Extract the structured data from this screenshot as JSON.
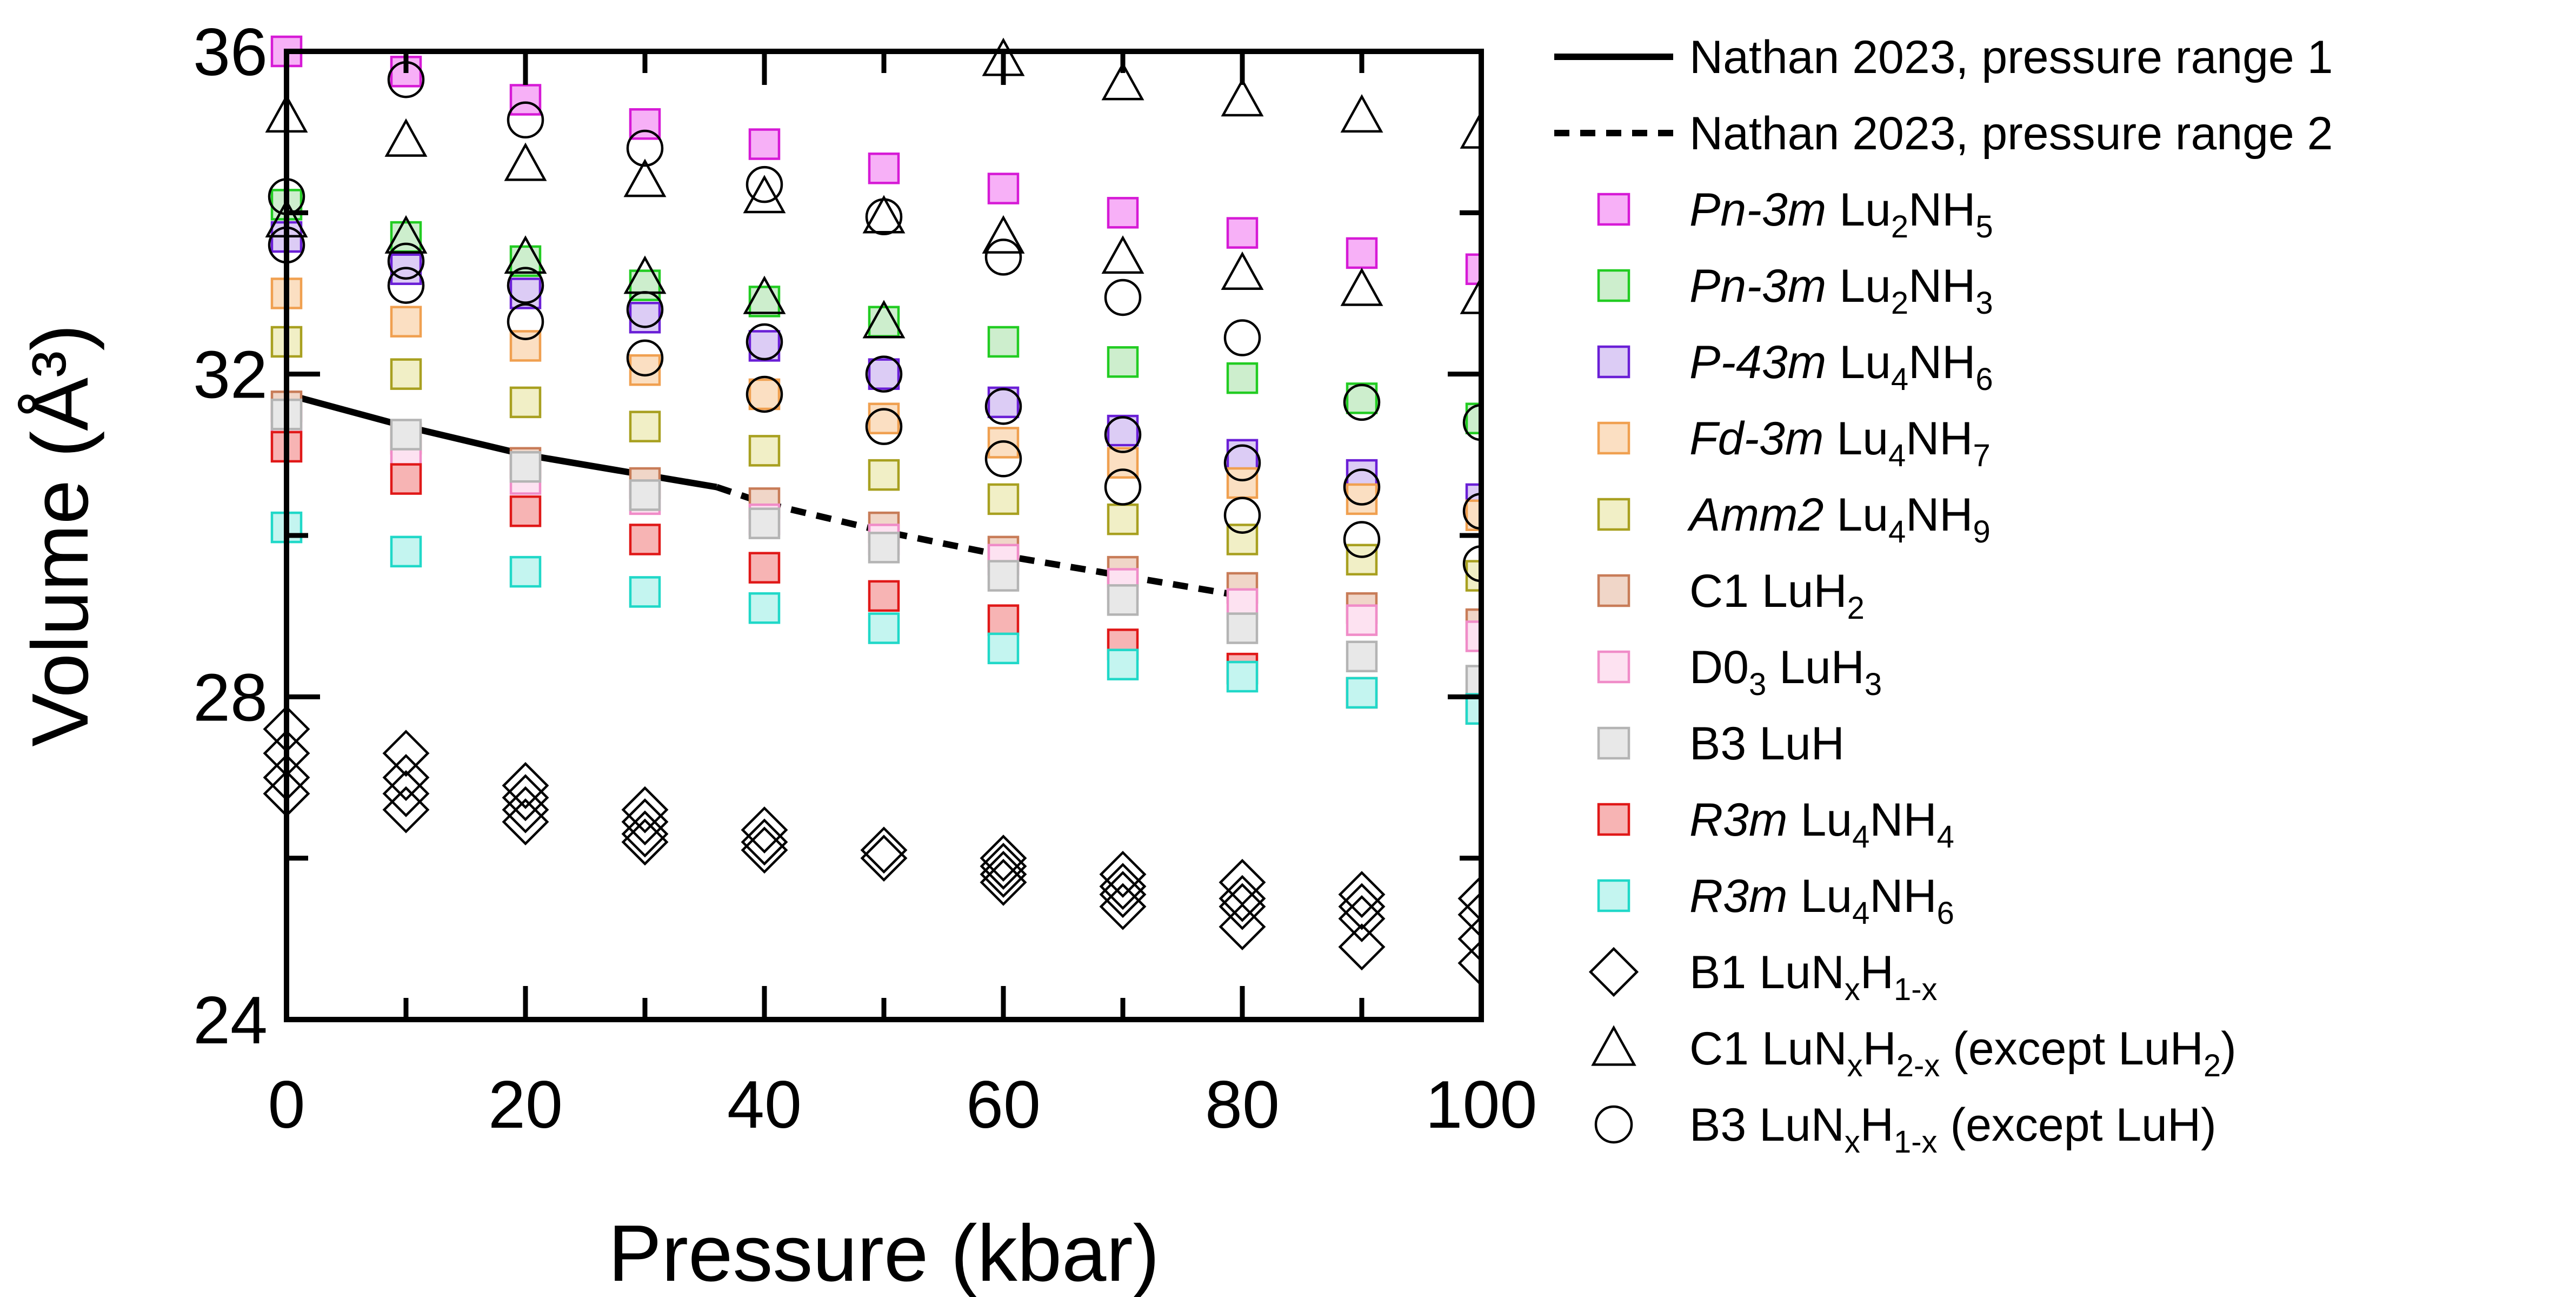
{
  "chart_data": {
    "type": "scatter",
    "title": "",
    "xlabel": "Pressure (kbar)",
    "ylabel": "Volume (Å³)",
    "xlim": [
      0,
      100
    ],
    "ylim": [
      24,
      36
    ],
    "xticks": [
      0,
      20,
      40,
      60,
      80,
      100
    ],
    "yticks": [
      24,
      28,
      32,
      36
    ],
    "grid": false,
    "legend_position": "right-outside",
    "lines": [
      {
        "name": "Nathan 2023, pressure range 1",
        "style": "solid",
        "x": [
          0,
          10,
          20,
          30,
          36
        ],
        "y": [
          31.75,
          31.35,
          31.0,
          30.75,
          30.6
        ]
      },
      {
        "name": "Nathan 2023, pressure range 2",
        "style": "dashed",
        "x": [
          36,
          40,
          50,
          60,
          70,
          80
        ],
        "y": [
          30.6,
          30.4,
          30.05,
          29.75,
          29.5,
          29.25
        ]
      }
    ],
    "series": [
      {
        "name": "Pn-3m Lu2NH5",
        "label_italic": "Pn-3m",
        "label_rest": " Lu",
        "formula": [
          [
            "2",
            "NH"
          ],
          [
            "5",
            ""
          ]
        ],
        "marker": "square",
        "stroke": "#d61ad6",
        "fill": "#f7b0f7",
        "x": [
          0,
          10,
          20,
          30,
          40,
          50,
          60,
          70,
          80,
          90,
          100
        ],
        "y": [
          36.0,
          35.75,
          35.4,
          35.1,
          34.85,
          34.55,
          34.3,
          34.0,
          33.75,
          33.5,
          33.3
        ]
      },
      {
        "name": "Pn-3m Lu2NH3",
        "label_italic": "Pn-3m",
        "label_rest": " Lu",
        "formula": [
          [
            "2",
            "NH"
          ],
          [
            "3",
            ""
          ]
        ],
        "marker": "square",
        "stroke": "#22cc22",
        "fill": "#cdeecd",
        "x": [
          0,
          10,
          20,
          30,
          40,
          50,
          60,
          70,
          80,
          90,
          100
        ],
        "y": [
          34.1,
          33.7,
          33.4,
          33.1,
          32.9,
          32.65,
          32.4,
          32.15,
          31.95,
          31.7,
          31.45
        ]
      },
      {
        "name": "P-43m Lu4NH6",
        "label_italic": "P-43m",
        "label_rest": " Lu",
        "formula": [
          [
            "4",
            "NH"
          ],
          [
            "6",
            ""
          ]
        ],
        "marker": "square",
        "stroke": "#6a1fd6",
        "fill": "#dcccf5",
        "x": [
          0,
          10,
          20,
          30,
          40,
          50,
          60,
          70,
          80,
          90,
          100
        ],
        "y": [
          33.7,
          33.3,
          33.0,
          32.7,
          32.35,
          32.0,
          31.65,
          31.3,
          31.0,
          30.75,
          30.45
        ]
      },
      {
        "name": "Fd-3m Lu4NH7",
        "label_italic": "Fd-3m",
        "label_rest": " Lu",
        "formula": [
          [
            "4",
            "NH"
          ],
          [
            "7",
            ""
          ]
        ],
        "marker": "square",
        "stroke": "#f0a050",
        "fill": "#fbdfc2",
        "x": [
          0,
          10,
          20,
          30,
          40,
          50,
          60,
          70,
          80,
          90,
          100
        ],
        "y": [
          33.0,
          32.65,
          32.35,
          32.05,
          31.75,
          31.45,
          31.15,
          30.9,
          30.65,
          30.45,
          30.25
        ]
      },
      {
        "name": "Amm2 Lu4NH9",
        "label_italic": "Amm2",
        "label_rest": " Lu",
        "formula": [
          [
            "4",
            "NH"
          ],
          [
            "9",
            ""
          ]
        ],
        "marker": "square",
        "stroke": "#a8a020",
        "fill": "#f1efc6",
        "x": [
          0,
          10,
          20,
          30,
          40,
          50,
          60,
          70,
          80,
          90,
          100
        ],
        "y": [
          32.4,
          32.0,
          31.65,
          31.35,
          31.05,
          30.75,
          30.45,
          30.2,
          29.95,
          29.7,
          29.5
        ]
      },
      {
        "name": "C1 LuH2",
        "label_italic": "",
        "label_rest": "C1 LuH",
        "formula": [
          [
            "2",
            ""
          ]
        ],
        "marker": "square",
        "stroke": "#c87c58",
        "fill": "#f0d6c8",
        "x": [
          0,
          10,
          20,
          30,
          40,
          50,
          60,
          70,
          80,
          90,
          100
        ],
        "y": [
          31.6,
          31.2,
          30.9,
          30.65,
          30.4,
          30.1,
          29.8,
          29.55,
          29.35,
          29.1,
          28.9
        ]
      },
      {
        "name": "D03 LuH3",
        "label_italic": "",
        "label_rest": "D0",
        "formula": [
          [
            "3",
            " LuH"
          ],
          [
            "3",
            ""
          ]
        ],
        "marker": "square",
        "stroke": "#f08cc8",
        "fill": "#fde2f1",
        "x": [
          0,
          10,
          20,
          30,
          40,
          50,
          60,
          70,
          80,
          90,
          100
        ],
        "y": [
          31.4,
          31.0,
          30.7,
          30.45,
          30.2,
          29.95,
          29.7,
          29.4,
          29.15,
          28.95,
          28.75
        ]
      },
      {
        "name": "B3 LuH",
        "label_italic": "",
        "label_rest": "B3 LuH",
        "formula": [],
        "marker": "square",
        "stroke": "#b4b4b4",
        "fill": "#e8e8e8",
        "x": [
          0,
          10,
          20,
          30,
          40,
          50,
          60,
          70,
          80,
          90,
          100
        ],
        "y": [
          31.5,
          31.25,
          30.85,
          30.5,
          30.15,
          29.85,
          29.5,
          29.2,
          28.85,
          28.5,
          28.2
        ]
      },
      {
        "name": "R3m Lu4NH4",
        "label_italic": "R3m",
        "label_rest": " Lu",
        "formula": [
          [
            "4",
            "NH"
          ],
          [
            "4",
            ""
          ]
        ],
        "marker": "square",
        "stroke": "#e01818",
        "fill": "#f7b4b4",
        "x": [
          0,
          10,
          20,
          30,
          40,
          50,
          60,
          70,
          80,
          90,
          100
        ],
        "y": [
          31.1,
          30.7,
          30.3,
          29.95,
          29.6,
          29.25,
          28.95,
          28.65,
          28.35,
          28.05,
          27.85
        ]
      },
      {
        "name": "R3m Lu4NH6",
        "label_italic": "R3m",
        "label_rest": " Lu",
        "formula": [
          [
            "4",
            "NH"
          ],
          [
            "6",
            ""
          ]
        ],
        "marker": "square",
        "stroke": "#20d8c8",
        "fill": "#c4f5f0",
        "x": [
          0,
          10,
          20,
          30,
          40,
          50,
          60,
          70,
          80,
          90,
          100
        ],
        "y": [
          30.1,
          29.8,
          29.55,
          29.3,
          29.1,
          28.85,
          28.6,
          28.4,
          28.25,
          28.05,
          27.85
        ]
      },
      {
        "name": "B1 LuNxH1-x",
        "label_italic": "",
        "label_rest": "B1 LuN",
        "formula": [
          [
            "x",
            "H"
          ],
          [
            "1-x",
            ""
          ]
        ],
        "marker": "diamond",
        "stroke": "#000000",
        "fill": "none",
        "x": [
          0,
          0,
          0,
          0,
          10,
          10,
          10,
          10,
          20,
          20,
          20,
          20,
          30,
          30,
          30,
          30,
          40,
          40,
          40,
          50,
          50,
          60,
          60,
          60,
          60,
          70,
          70,
          70,
          70,
          80,
          80,
          80,
          80,
          90,
          90,
          90,
          90,
          100,
          100,
          100,
          100
        ],
        "y": [
          27.6,
          27.3,
          27.0,
          26.8,
          27.3,
          27.0,
          26.8,
          26.6,
          26.9,
          26.75,
          26.6,
          26.45,
          26.6,
          26.45,
          26.3,
          26.2,
          26.35,
          26.2,
          26.1,
          26.1,
          26.0,
          26.0,
          25.9,
          25.8,
          25.7,
          25.8,
          25.65,
          25.55,
          25.4,
          25.7,
          25.5,
          25.4,
          25.15,
          25.55,
          25.4,
          25.25,
          24.9,
          25.5,
          25.3,
          25.0,
          24.7
        ]
      },
      {
        "name": "C1 LuNxH2-x (except LuH2)",
        "label_italic": "",
        "label_rest": "C1 LuN",
        "formula": [
          [
            "x",
            "H"
          ],
          [
            "2-x",
            " (except LuH"
          ],
          [
            "2",
            ")"
          ]
        ],
        "marker": "triangle",
        "stroke": "#000000",
        "fill": "none",
        "x": [
          0,
          10,
          20,
          30,
          40,
          50,
          60,
          70,
          80,
          90,
          100,
          0,
          10,
          20,
          30,
          40,
          50,
          60,
          70,
          80,
          90,
          100
        ],
        "y": [
          35.2,
          34.9,
          34.6,
          34.4,
          34.2,
          33.95,
          35.9,
          35.6,
          35.4,
          35.2,
          35.0,
          33.9,
          33.7,
          33.45,
          33.2,
          32.95,
          32.65,
          33.7,
          33.45,
          33.25,
          33.05,
          32.95
        ]
      },
      {
        "name": "B3 LuNxH1-x (except LuH)",
        "label_italic": "",
        "label_rest": "B3 LuN",
        "formula": [
          [
            "x",
            "H"
          ],
          [
            "1-x",
            " (except LuH)"
          ]
        ],
        "marker": "circle",
        "stroke": "#000000",
        "fill": "none",
        "x": [
          0,
          10,
          20,
          30,
          40,
          50,
          60,
          70,
          80,
          90,
          100,
          0,
          10,
          20,
          30,
          40,
          50,
          60,
          70,
          80,
          90,
          100,
          10,
          20,
          30,
          40,
          50,
          60,
          70,
          80,
          90,
          100
        ],
        "y": [
          34.2,
          35.65,
          35.15,
          34.8,
          34.35,
          33.95,
          33.45,
          32.95,
          32.45,
          31.65,
          31.4,
          33.6,
          33.1,
          32.65,
          32.2,
          31.75,
          31.35,
          30.95,
          30.6,
          30.25,
          29.95,
          29.65,
          33.4,
          33.1,
          32.8,
          32.4,
          32.0,
          31.6,
          31.25,
          30.9,
          30.6,
          30.3
        ]
      }
    ]
  }
}
